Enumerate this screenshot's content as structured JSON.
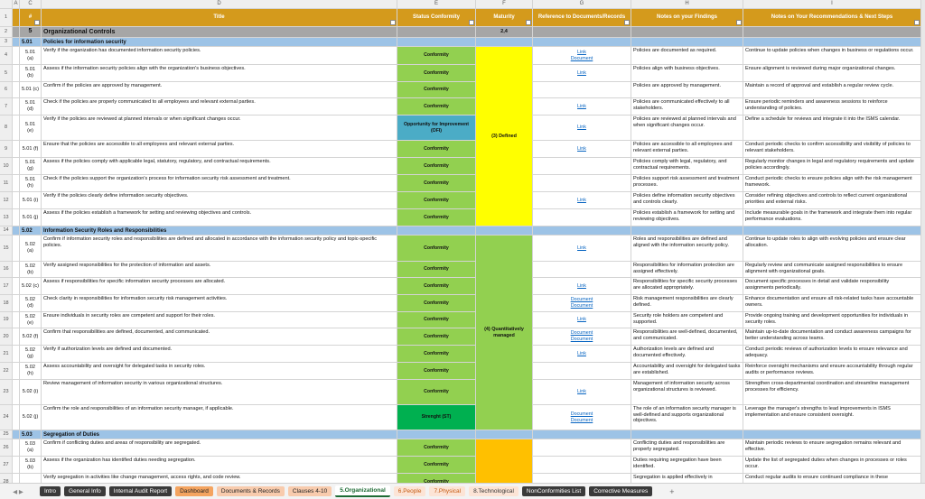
{
  "column_letters": [
    "A",
    "C",
    "D",
    "E",
    "F",
    "G",
    "H",
    "I"
  ],
  "header": {
    "row": 1,
    "cells": [
      "#",
      "Title",
      "Status Conformity",
      "Maturity",
      "Reference to Documents/Records",
      "Notes on your Findings",
      "Notes on Your Recommendations & Next Steps"
    ]
  },
  "control": {
    "row": 2,
    "id": "5",
    "title": "Organizational Controls",
    "maturity": "2,4"
  },
  "sections": [
    {
      "row": 3,
      "id": "5.01",
      "title": "Policies for information security",
      "maturity": "(3) Defined",
      "maturity_color": "#ffff00",
      "items": [
        {
          "row": 4,
          "id": "5.01 (a)",
          "check": "Verify if the organization has documented information security policies.",
          "status": "Conformity",
          "status_color": "#92d050",
          "refs": [
            "Link",
            "Document"
          ],
          "finding": "Policies are documented as required.",
          "recommendation": "Continue to update policies when changes in business or regulations occur."
        },
        {
          "row": 5,
          "id": "5.01 (b)",
          "check": "Assess if the information security policies align with the organization's business objectives.",
          "status": "Conformity",
          "status_color": "#92d050",
          "refs": [
            "Link"
          ],
          "finding": "Policies align with business objectives.",
          "recommendation": "Ensure alignment is reviewed during major organizational changes."
        },
        {
          "row": 6,
          "id": "5.01 (c)",
          "check": "Confirm if the policies are approved by management.",
          "status": "Conformity",
          "status_color": "#92d050",
          "refs": [],
          "finding": "Policies are approved by management.",
          "recommendation": "Maintain a record of approval and establish a regular review cycle."
        },
        {
          "row": 7,
          "id": "5.01 (d)",
          "check": "Check if the policies are properly communicated to all employees and relevant external parties.",
          "status": "Conformity",
          "status_color": "#92d050",
          "refs": [
            "Link"
          ],
          "finding": "Policies are communicated effectively to all stakeholders.",
          "recommendation": "Ensure periodic reminders and awareness sessions to reinforce understanding of policies."
        },
        {
          "row": 8,
          "id": "5.01 (e)",
          "check": "Verify if the policies are reviewed at planned intervals or when significant changes occur.",
          "status": "Opportunity for Improvement (OFI)",
          "status_color": "#4bacc6",
          "refs": [
            "Link"
          ],
          "finding": "Policies are reviewed at planned intervals and when significant changes occur.",
          "recommendation": "Define a schedule for reviews and integrate it into the ISMS calendar."
        },
        {
          "row": 9,
          "id": "5.01 (f)",
          "check": "Ensure that the policies are accessible to all employees and relevant external parties.",
          "status": "Conformity",
          "status_color": "#92d050",
          "refs": [
            "Link"
          ],
          "finding": "Policies are accessible to all employees and relevant external parties.",
          "recommendation": "Conduct periodic checks to confirm accessibility and visibility of policies to relevant stakeholders."
        },
        {
          "row": 10,
          "id": "5.01 (g)",
          "check": "Assess if the policies comply with applicable legal, statutory, regulatory, and contractual requirements.",
          "status": "Conformity",
          "status_color": "#92d050",
          "refs": [],
          "finding": "Policies comply with legal, regulatory, and contractual requirements.",
          "recommendation": "Regularly monitor changes in legal and regulatory requirements and update policies accordingly."
        },
        {
          "row": 11,
          "id": "5.01 (h)",
          "check": "Check if the policies support the organization's process for information security risk assessment and treatment.",
          "status": "Conformity",
          "status_color": "#92d050",
          "refs": [],
          "finding": "Policies support risk assessment and treatment processes.",
          "recommendation": "Conduct periodic checks to ensure policies align with the risk management framework."
        },
        {
          "row": 12,
          "id": "5.01 (i)",
          "check": "Verify if the policies clearly define information security objectives.",
          "status": "Conformity",
          "status_color": "#92d050",
          "refs": [
            "Link"
          ],
          "finding": "Policies define information security objectives and controls clearly.",
          "recommendation": "Consider refining objectives and controls to reflect current organizational priorities and external risks."
        },
        {
          "row": 13,
          "id": "5.01 (j)",
          "check": "Assess if the policies establish a framework for setting and reviewing objectives and controls.",
          "status": "Conformity",
          "status_color": "#92d050",
          "refs": [],
          "finding": "Policies establish a framework for setting and reviewing objectives.",
          "recommendation": "Include measurable goals in the framework and integrate them into regular performance evaluations."
        }
      ]
    },
    {
      "row": 14,
      "id": "5.02",
      "title": "Information Security Roles and Responsibilities",
      "maturity": "(4) Quantitatively managed",
      "maturity_color": "#92d050",
      "items": [
        {
          "row": 15,
          "id": "5.02 (a)",
          "check": "Confirm if information security roles and responsibilities are defined and allocated in accordance with the information security policy and topic-specific policies.",
          "status": "Conformity",
          "status_color": "#92d050",
          "refs": [
            "Link"
          ],
          "finding": "Roles and responsibilities are defined and aligned with the information security policy.",
          "recommendation": "Continue to update roles to align with evolving policies and ensure clear allocation."
        },
        {
          "row": 16,
          "id": "5.02 (b)",
          "check": "Verify assigned responsibilities for the protection of information and assets.",
          "status": "Conformity",
          "status_color": "#92d050",
          "refs": [],
          "finding": "Responsibilities for information protection are assigned effectively.",
          "recommendation": "Regularly review and communicate assigned responsibilities to ensure alignment with organizational goals."
        },
        {
          "row": 17,
          "id": "5.02 (c)",
          "check": "Assess if responsibilities for specific information security processes are allocated.",
          "status": "Conformity",
          "status_color": "#92d050",
          "refs": [
            "Link"
          ],
          "finding": "Responsibilities for specific security processes are allocated appropriately.",
          "recommendation": "Document specific processes in detail and validate responsibility assignments periodically."
        },
        {
          "row": 18,
          "id": "5.02 (d)",
          "check": "Check clarity in responsibilities for information security risk management activities.",
          "status": "Conformity",
          "status_color": "#92d050",
          "refs": [
            "Document",
            "Document"
          ],
          "finding": "Risk management responsibilities are clearly defined.",
          "recommendation": "Enhance documentation and ensure all risk-related tasks have accountable owners."
        },
        {
          "row": 19,
          "id": "5.02 (e)",
          "check": "Ensure individuals in security roles are competent and support for their roles.",
          "status": "Conformity",
          "status_color": "#92d050",
          "refs": [
            "Link"
          ],
          "finding": "Security role holders are competent and supported.",
          "recommendation": "Provide ongoing training and development opportunities for individuals in security roles."
        },
        {
          "row": 20,
          "id": "5.02 (f)",
          "check": "Confirm that responsibilities are defined, documented, and communicated.",
          "status": "Conformity",
          "status_color": "#92d050",
          "refs": [
            "Document",
            "Document"
          ],
          "finding": "Responsibilities are well-defined, documented, and communicated.",
          "recommendation": "Maintain up-to-date documentation and conduct awareness campaigns for better understanding across teams."
        },
        {
          "row": 21,
          "id": "5.02 (g)",
          "check": "Verify if authorization levels are defined and documented.",
          "status": "Conformity",
          "status_color": "#92d050",
          "refs": [
            "Link"
          ],
          "finding": "Authorization levels are defined and documented effectively.",
          "recommendation": "Conduct periodic reviews of authorization levels to ensure relevance and adequacy."
        },
        {
          "row": 22,
          "id": "5.02 (h)",
          "check": "Assess accountability and oversight for delegated tasks in security roles.",
          "status": "Conformity",
          "status_color": "#92d050",
          "refs": [],
          "finding": "Accountability and oversight for delegated tasks are established.",
          "recommendation": "Reinforce oversight mechanisms and ensure accountability through regular audits or performance reviews."
        },
        {
          "row": 23,
          "id": "5.02 (i)",
          "check": "Review management of information security in various organizational structures.",
          "status": "Conformity",
          "status_color": "#92d050",
          "refs": [
            "Link"
          ],
          "finding": "Management of information security across organizational structures is reviewed.",
          "recommendation": "Strengthen cross-departmental coordination and streamline management processes for efficiency."
        },
        {
          "row": 24,
          "id": "5.02 (j)",
          "check": "Confirm the role and responsibilities of an information security manager, if applicable.",
          "status": "Strenght (ST)",
          "status_color": "#00b050",
          "refs": [
            "Document",
            "Document"
          ],
          "finding": "The role of an information security manager is well-defined and supports organizational objectives.",
          "recommendation": "Leverage the manager's strengths to lead improvements in ISMS implementation and ensure consistent oversight."
        }
      ]
    },
    {
      "row": 25,
      "id": "5.03",
      "title": "Segregation of Duties",
      "maturity": "",
      "maturity_color": "#ffc000",
      "items": [
        {
          "row": 26,
          "id": "5.03 (a)",
          "check": "Confirm if conflicting duties and areas of responsibility are segregated.",
          "status": "Conformity",
          "status_color": "#92d050",
          "refs": [],
          "finding": "Conflicting duties and responsibilities are properly segregated.",
          "recommendation": "Maintain periodic reviews to ensure segregation remains relevant and effective."
        },
        {
          "row": 27,
          "id": "5.03 (b)",
          "check": "Assess if the organization has identified duties needing segregation.",
          "status": "Conformity",
          "status_color": "#92d050",
          "refs": [],
          "finding": "Duties requiring segregation have been identified.",
          "recommendation": "Update the list of segregated duties when changes in processes or roles occur."
        },
        {
          "row": 28,
          "id": "",
          "check": "Verify segregation in activities like change management, access rights, and code review.",
          "status": "Conformity",
          "status_color": "#92d050",
          "refs": [],
          "finding": "Segregation is applied effectively in",
          "recommendation": "Conduct regular audits to ensure continued compliance in these"
        }
      ]
    }
  ],
  "tabs": [
    {
      "label": "Intro",
      "color": "#3a3a3a",
      "text_color": "#ffffff"
    },
    {
      "label": "General Info",
      "color": "#3a3a3a",
      "text_color": "#ffffff"
    },
    {
      "label": "Internal Audit Report",
      "color": "#3a3a3a",
      "text_color": "#ffffff"
    },
    {
      "label": "Dashboard",
      "color": "#f4a460",
      "text_color": "#222222"
    },
    {
      "label": "Documents & Records",
      "color": "#f8cbad",
      "text_color": "#222222"
    },
    {
      "label": "Clauses 4-10",
      "color": "#f8cbad",
      "text_color": "#222222"
    },
    {
      "label": "5.Organizational",
      "color": "#ffffff",
      "text_color": "#1e6b34",
      "active": true
    },
    {
      "label": "6.People",
      "color": "#fce4d6",
      "text_color": "#c55a11"
    },
    {
      "label": "7.Physical",
      "color": "#fce4d6",
      "text_color": "#c55a11"
    },
    {
      "label": "8.Technological",
      "color": "#fce4d6",
      "text_color": "#333333"
    },
    {
      "label": "NonConformities List",
      "color": "#3a3a3a",
      "text_color": "#ffffff"
    },
    {
      "label": "Corrective Measures",
      "color": "#3a3a3a",
      "text_color": "#ffffff"
    }
  ]
}
